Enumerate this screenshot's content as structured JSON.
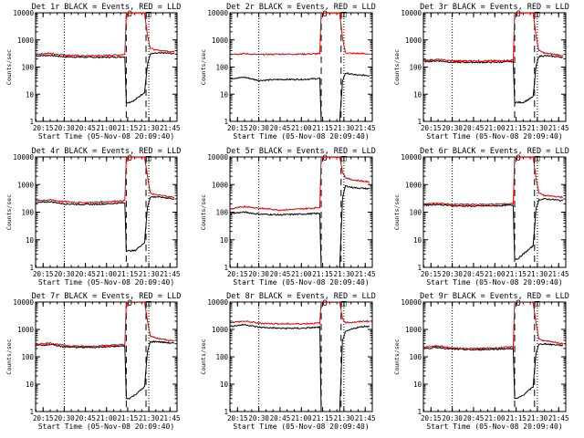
{
  "figure": {
    "colors": {
      "events": "#000000",
      "lld": "#e00000",
      "axes": "#000000",
      "background": "#ffffff"
    },
    "marker_circle_label": "O",
    "marker_square_label": "□"
  },
  "chart_data": [
    {
      "type": "line",
      "title": "Det 1r BLACK = Events, RED = LLD",
      "xlabel": "Start Time (05-Nov-08 20:09:40)",
      "ylabel": "Counts/sec",
      "ylim": [
        1,
        10000
      ],
      "yscale": "log",
      "xlim": [
        "20:09:40",
        "21:50:00"
      ],
      "xticks": [
        "20:15",
        "20:30",
        "20:45",
        "21:00",
        "21:15",
        "21:30",
        "21:45"
      ],
      "yticks": [
        "1",
        "10",
        "100",
        "1000",
        "10000"
      ],
      "vlines_dotted": [
        "20:30",
        "21:30"
      ],
      "vlines_dashed": [
        "21:14",
        "21:28"
      ],
      "series": [
        {
          "name": "BLACK",
          "x": [
            "20:10",
            "20:20",
            "20:30",
            "20:45",
            "21:00",
            "21:13",
            "21:14",
            "21:16",
            "21:20",
            "21:27",
            "21:29",
            "21:31",
            "21:35",
            "21:40",
            "21:45",
            "21:48"
          ],
          "y": [
            260,
            270,
            240,
            230,
            230,
            240,
            5,
            5,
            6,
            12,
            120,
            300,
            320,
            330,
            320,
            310
          ]
        },
        {
          "name": "RED",
          "x": [
            "20:10",
            "20:20",
            "20:30",
            "20:45",
            "21:00",
            "21:13",
            "21:14",
            "21:16",
            "21:20",
            "21:27",
            "21:29",
            "21:31",
            "21:35",
            "21:40",
            "21:45",
            "21:48"
          ],
          "y": [
            300,
            320,
            280,
            260,
            270,
            290,
            10000,
            10000,
            10000,
            10000,
            1500,
            500,
            420,
            400,
            380,
            370
          ]
        }
      ]
    },
    {
      "type": "line",
      "title": "Det 2r BLACK = Events, RED = LLD",
      "xlabel": "Start Time (05-Nov-08 20:09:40)",
      "ylabel": "Counts/sec",
      "ylim": [
        1,
        10000
      ],
      "yscale": "log",
      "xlim": [
        "20:09:40",
        "21:50:00"
      ],
      "xticks": [
        "20:15",
        "20:30",
        "20:45",
        "21:00",
        "21:15",
        "21:30",
        "21:45"
      ],
      "yticks": [
        "1",
        "10",
        "100",
        "1000",
        "10000"
      ],
      "vlines_dotted": [
        "20:30",
        "21:30"
      ],
      "vlines_dashed": [
        "21:14",
        "21:28"
      ],
      "series": [
        {
          "name": "BLACK",
          "x": [
            "20:10",
            "20:20",
            "20:30",
            "20:45",
            "21:00",
            "21:13",
            "21:14",
            "21:16",
            "21:20",
            "21:27",
            "21:29",
            "21:31",
            "21:35",
            "21:40",
            "21:45",
            "21:48"
          ],
          "y": [
            38,
            42,
            32,
            35,
            35,
            38,
            1,
            1,
            1,
            1,
            30,
            60,
            55,
            50,
            50,
            48
          ]
        },
        {
          "name": "RED",
          "x": [
            "20:10",
            "20:20",
            "20:30",
            "20:45",
            "21:00",
            "21:13",
            "21:14",
            "21:16",
            "21:20",
            "21:27",
            "21:29",
            "21:31",
            "21:35",
            "21:40",
            "21:45",
            "21:48"
          ],
          "y": [
            300,
            310,
            290,
            300,
            300,
            310,
            10000,
            10000,
            10000,
            10000,
            1200,
            340,
            320,
            320,
            310,
            300
          ]
        }
      ]
    },
    {
      "type": "line",
      "title": "Det 3r BLACK = Events, RED = LLD",
      "xlabel": "Start Time (05-Nov-08 20:09:40)",
      "ylabel": "Counts/sec",
      "ylim": [
        1,
        10000
      ],
      "yscale": "log",
      "xlim": [
        "20:09:40",
        "21:50:00"
      ],
      "xticks": [
        "20:15",
        "20:30",
        "20:45",
        "21:00",
        "21:15",
        "21:30",
        "21:45"
      ],
      "yticks": [
        "1",
        "10",
        "100",
        "1000",
        "10000"
      ],
      "vlines_dotted": [
        "20:30",
        "21:30"
      ],
      "vlines_dashed": [
        "21:14",
        "21:28"
      ],
      "series": [
        {
          "name": "BLACK",
          "x": [
            "20:10",
            "20:20",
            "20:30",
            "20:45",
            "21:00",
            "21:13",
            "21:14",
            "21:16",
            "21:20",
            "21:27",
            "21:29",
            "21:31",
            "21:35",
            "21:40",
            "21:45",
            "21:48"
          ],
          "y": [
            160,
            170,
            150,
            150,
            150,
            160,
            5,
            5,
            5,
            8,
            100,
            250,
            260,
            250,
            240,
            230
          ]
        },
        {
          "name": "RED",
          "x": [
            "20:10",
            "20:20",
            "20:30",
            "20:45",
            "21:00",
            "21:13",
            "21:14",
            "21:16",
            "21:20",
            "21:27",
            "21:29",
            "21:31",
            "21:35",
            "21:40",
            "21:45",
            "21:48"
          ],
          "y": [
            180,
            190,
            170,
            170,
            170,
            180,
            10000,
            10000,
            10000,
            10000,
            1500,
            400,
            330,
            300,
            280,
            270
          ]
        }
      ]
    },
    {
      "type": "line",
      "title": "Det 4r BLACK = Events, RED = LLD",
      "xlabel": "Start Time (05-Nov-08 20:09:40)",
      "ylabel": "Counts/sec",
      "ylim": [
        1,
        10000
      ],
      "yscale": "log",
      "xlim": [
        "20:09:40",
        "21:50:00"
      ],
      "xticks": [
        "20:15",
        "20:30",
        "20:45",
        "21:00",
        "21:15",
        "21:30",
        "21:45"
      ],
      "yticks": [
        "1",
        "10",
        "100",
        "1000",
        "10000"
      ],
      "vlines_dotted": [
        "20:30",
        "21:30"
      ],
      "vlines_dashed": [
        "21:14",
        "21:28"
      ],
      "series": [
        {
          "name": "BLACK",
          "x": [
            "20:10",
            "20:20",
            "20:30",
            "20:45",
            "21:00",
            "21:13",
            "21:14",
            "21:16",
            "21:20",
            "21:27",
            "21:29",
            "21:31",
            "21:35",
            "21:40",
            "21:45",
            "21:48"
          ],
          "y": [
            220,
            240,
            200,
            190,
            200,
            220,
            4,
            4,
            4,
            8,
            150,
            350,
            360,
            340,
            320,
            300
          ]
        },
        {
          "name": "RED",
          "x": [
            "20:10",
            "20:20",
            "20:30",
            "20:45",
            "21:00",
            "21:13",
            "21:14",
            "21:16",
            "21:20",
            "21:27",
            "21:29",
            "21:31",
            "21:35",
            "21:40",
            "21:45",
            "21:48"
          ],
          "y": [
            260,
            280,
            240,
            220,
            240,
            260,
            10000,
            10000,
            10000,
            10000,
            2000,
            500,
            420,
            400,
            360,
            350
          ]
        }
      ]
    },
    {
      "type": "line",
      "title": "Det 5r BLACK = Events, RED = LLD",
      "xlabel": "Start Time (05-Nov-08 20:09:40)",
      "ylabel": "Counts/sec",
      "ylim": [
        1,
        10000
      ],
      "yscale": "log",
      "xlim": [
        "20:09:40",
        "21:50:00"
      ],
      "xticks": [
        "20:15",
        "20:30",
        "20:45",
        "21:00",
        "21:15",
        "21:30",
        "21:45"
      ],
      "yticks": [
        "1",
        "10",
        "100",
        "1000",
        "10000"
      ],
      "vlines_dotted": [
        "20:30",
        "21:30"
      ],
      "vlines_dashed": [
        "21:14",
        "21:28"
      ],
      "series": [
        {
          "name": "BLACK",
          "x": [
            "20:10",
            "20:20",
            "20:30",
            "20:45",
            "21:00",
            "21:13",
            "21:14",
            "21:16",
            "21:20",
            "21:27",
            "21:29",
            "21:31",
            "21:35",
            "21:40",
            "21:45",
            "21:48"
          ],
          "y": [
            90,
            100,
            85,
            80,
            85,
            90,
            1,
            1,
            1,
            1,
            300,
            900,
            800,
            750,
            720,
            700
          ]
        },
        {
          "name": "RED",
          "x": [
            "20:10",
            "20:20",
            "20:30",
            "20:45",
            "21:00",
            "21:13",
            "21:14",
            "21:16",
            "21:20",
            "21:27",
            "21:29",
            "21:31",
            "21:35",
            "21:40",
            "21:45",
            "21:48"
          ],
          "y": [
            130,
            160,
            140,
            120,
            130,
            150,
            10000,
            10000,
            10000,
            10000,
            3000,
            1800,
            1500,
            1400,
            1300,
            1200
          ]
        }
      ]
    },
    {
      "type": "line",
      "title": "Det 6r BLACK = Events, RED = LLD",
      "xlabel": "Start Time (05-Nov-08 20:09:40)",
      "ylabel": "Counts/sec",
      "ylim": [
        1,
        10000
      ],
      "yscale": "log",
      "xlim": [
        "20:09:40",
        "21:50:00"
      ],
      "xticks": [
        "20:15",
        "20:30",
        "20:45",
        "21:00",
        "21:15",
        "21:30",
        "21:45"
      ],
      "yticks": [
        "1",
        "10",
        "100",
        "1000",
        "10000"
      ],
      "vlines_dotted": [
        "20:30",
        "21:30"
      ],
      "vlines_dashed": [
        "21:14",
        "21:28"
      ],
      "series": [
        {
          "name": "BLACK",
          "x": [
            "20:10",
            "20:20",
            "20:30",
            "20:45",
            "21:00",
            "21:13",
            "21:14",
            "21:16",
            "21:20",
            "21:27",
            "21:29",
            "21:31",
            "21:35",
            "21:40",
            "21:45",
            "21:48"
          ],
          "y": [
            180,
            190,
            170,
            165,
            170,
            180,
            2,
            2,
            3,
            6,
            120,
            280,
            300,
            290,
            270,
            260
          ]
        },
        {
          "name": "RED",
          "x": [
            "20:10",
            "20:20",
            "20:30",
            "20:45",
            "21:00",
            "21:13",
            "21:14",
            "21:16",
            "21:20",
            "21:27",
            "21:29",
            "21:31",
            "21:35",
            "21:40",
            "21:45",
            "21:48"
          ],
          "y": [
            200,
            210,
            190,
            190,
            195,
            205,
            10000,
            10000,
            10000,
            10000,
            1800,
            500,
            400,
            380,
            360,
            350
          ]
        }
      ]
    },
    {
      "type": "line",
      "title": "Det 7r BLACK = Events, RED = LLD",
      "xlabel": "Start Time (05-Nov-08 20:09:40)",
      "ylabel": "Counts/sec",
      "ylim": [
        1,
        10000
      ],
      "yscale": "log",
      "xlim": [
        "20:09:40",
        "21:50:00"
      ],
      "xticks": [
        "20:15",
        "20:30",
        "20:45",
        "21:00",
        "21:15",
        "21:30",
        "21:45"
      ],
      "yticks": [
        "1",
        "10",
        "100",
        "1000",
        "10000"
      ],
      "vlines_dotted": [
        "20:30",
        "21:30"
      ],
      "vlines_dashed": [
        "21:14",
        "21:28"
      ],
      "series": [
        {
          "name": "BLACK",
          "x": [
            "20:10",
            "20:20",
            "20:30",
            "20:45",
            "21:00",
            "21:13",
            "21:14",
            "21:16",
            "21:20",
            "21:27",
            "21:29",
            "21:31",
            "21:35",
            "21:40",
            "21:45",
            "21:48"
          ],
          "y": [
            260,
            280,
            230,
            220,
            230,
            250,
            3,
            3,
            4,
            8,
            150,
            350,
            360,
            340,
            320,
            310
          ]
        },
        {
          "name": "RED",
          "x": [
            "20:10",
            "20:20",
            "20:30",
            "20:45",
            "21:00",
            "21:13",
            "21:14",
            "21:16",
            "21:20",
            "21:27",
            "21:29",
            "21:31",
            "21:35",
            "21:40",
            "21:45",
            "21:48"
          ],
          "y": [
            290,
            320,
            260,
            240,
            260,
            280,
            10000,
            10000,
            10000,
            10000,
            2000,
            600,
            480,
            440,
            400,
            380
          ]
        }
      ]
    },
    {
      "type": "line",
      "title": "Det 8r BLACK = Events, RED = LLD",
      "xlabel": "Start Time (05-Nov-08 20:09:40)",
      "ylabel": "Counts/sec",
      "ylim": [
        1,
        10000
      ],
      "yscale": "log",
      "xlim": [
        "20:09:40",
        "21:50:00"
      ],
      "xticks": [
        "20:15",
        "20:30",
        "20:45",
        "21:00",
        "21:15",
        "21:30",
        "21:45"
      ],
      "yticks": [
        "1",
        "10",
        "100",
        "1000",
        "10000"
      ],
      "vlines_dotted": [
        "20:30",
        "21:30"
      ],
      "vlines_dashed": [
        "21:14",
        "21:28"
      ],
      "series": [
        {
          "name": "BLACK",
          "x": [
            "20:10",
            "20:20",
            "20:30",
            "20:45",
            "21:00",
            "21:13",
            "21:14",
            "21:16",
            "21:20",
            "21:27",
            "21:29",
            "21:31",
            "21:35",
            "21:40",
            "21:45",
            "21:48"
          ],
          "y": [
            1300,
            1500,
            1200,
            1100,
            1100,
            1200,
            1,
            1,
            1,
            1,
            400,
            800,
            1000,
            1200,
            1300,
            1300
          ]
        },
        {
          "name": "RED",
          "x": [
            "20:10",
            "20:20",
            "20:30",
            "20:45",
            "21:00",
            "21:13",
            "21:14",
            "21:16",
            "21:20",
            "21:27",
            "21:29",
            "21:31",
            "21:35",
            "21:40",
            "21:45",
            "21:48"
          ],
          "y": [
            1800,
            2000,
            1700,
            1600,
            1600,
            1700,
            10000,
            10000,
            10000,
            10000,
            2500,
            1800,
            1800,
            1900,
            2000,
            2000
          ]
        }
      ]
    },
    {
      "type": "line",
      "title": "Det 9r BLACK = Events, RED = LLD",
      "xlabel": "Start Time (05-Nov-08 20:09:40)",
      "ylabel": "Counts/sec",
      "ylim": [
        1,
        10000
      ],
      "yscale": "log",
      "xlim": [
        "20:09:40",
        "21:50:00"
      ],
      "xticks": [
        "20:15",
        "20:30",
        "20:45",
        "21:00",
        "21:15",
        "21:30",
        "21:45"
      ],
      "yticks": [
        "1",
        "10",
        "100",
        "1000",
        "10000"
      ],
      "vlines_dotted": [
        "20:30",
        "21:30"
      ],
      "vlines_dashed": [
        "21:14",
        "21:28"
      ],
      "series": [
        {
          "name": "BLACK",
          "x": [
            "20:10",
            "20:20",
            "20:30",
            "20:45",
            "21:00",
            "21:13",
            "21:14",
            "21:16",
            "21:20",
            "21:27",
            "21:29",
            "21:31",
            "21:35",
            "21:40",
            "21:45",
            "21:48"
          ],
          "y": [
            200,
            220,
            190,
            180,
            190,
            200,
            3,
            3,
            4,
            8,
            130,
            280,
            300,
            280,
            270,
            260
          ]
        },
        {
          "name": "RED",
          "x": [
            "20:10",
            "20:20",
            "20:30",
            "20:45",
            "21:00",
            "21:13",
            "21:14",
            "21:16",
            "21:20",
            "21:27",
            "21:29",
            "21:31",
            "21:35",
            "21:40",
            "21:45",
            "21:48"
          ],
          "y": [
            230,
            250,
            210,
            200,
            210,
            230,
            10000,
            10000,
            10000,
            10000,
            1800,
            450,
            380,
            350,
            320,
            310
          ]
        }
      ]
    }
  ]
}
